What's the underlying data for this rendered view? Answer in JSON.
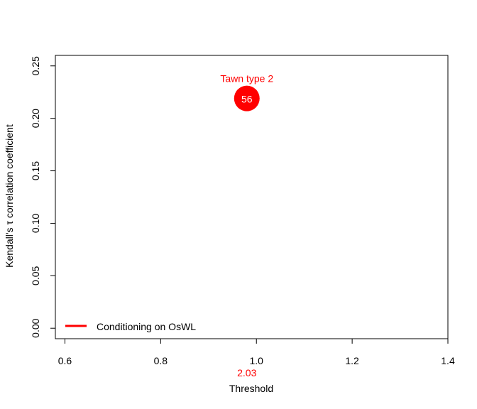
{
  "chart_data": {
    "type": "scatter",
    "title": "",
    "xlabel": "Threshold",
    "ylabel": "Kendall's τ correlation coefficient",
    "xlim": [
      0.58,
      1.4
    ],
    "ylim": [
      -0.01,
      0.26
    ],
    "x_ticks": [
      0.6,
      0.8,
      1.0,
      1.2,
      1.4
    ],
    "x_tick_labels": [
      "0.6",
      "0.8",
      "1.0",
      "1.2",
      "1.4"
    ],
    "y_ticks": [
      0.0,
      0.05,
      0.1,
      0.15,
      0.2,
      0.25
    ],
    "y_tick_labels": [
      "0.00",
      "0.05",
      "0.10",
      "0.15",
      "0.20",
      "0.25"
    ],
    "grid": false,
    "legend_position": "bottom-left",
    "series": [
      {
        "name": "Conditioning on OsWL",
        "color": "#ff0000",
        "points": [
          {
            "x": 0.98,
            "y": 0.219,
            "label": "56",
            "annotation": "Tawn type 2"
          }
        ]
      }
    ],
    "x_extra_labels": [
      {
        "x": 0.98,
        "text": "2.03",
        "color": "#ff0000"
      }
    ]
  }
}
